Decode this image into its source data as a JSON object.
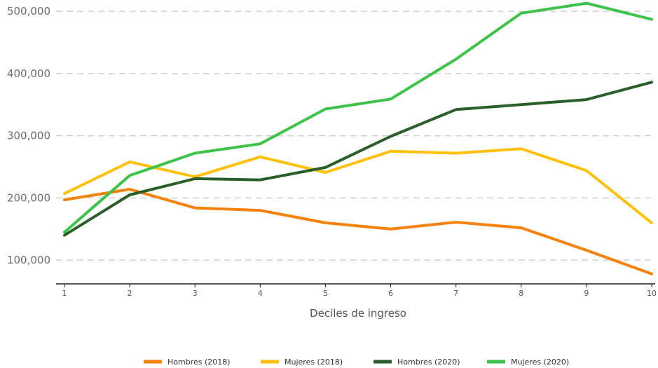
{
  "chart_data": {
    "type": "line",
    "title": "",
    "xlabel": "Deciles de ingreso",
    "ylabel": "",
    "x": [
      1,
      2,
      3,
      4,
      5,
      6,
      7,
      8,
      9,
      10
    ],
    "y_ticks": [
      100000,
      200000,
      300000,
      400000,
      500000
    ],
    "y_tick_labels": [
      "100,000",
      "200,000",
      "300,000",
      "400,000",
      "500,000"
    ],
    "ylim": [
      63000,
      517000
    ],
    "grid": "horizontal-dashed",
    "legend_position": "bottom",
    "series": [
      {
        "name": "Hombres (2018)",
        "color": "#F5820A",
        "values": [
          197000,
          214000,
          184000,
          180000,
          160000,
          150000,
          161000,
          152000,
          116000,
          78000
        ]
      },
      {
        "name": "Mujeres (2018)",
        "color": "#FFC10E",
        "values": [
          207000,
          258000,
          234000,
          266000,
          241000,
          275000,
          272000,
          279000,
          244000,
          160000
        ]
      },
      {
        "name": "Hombres (2020)",
        "color": "#2A5E2B",
        "values": [
          140000,
          205000,
          231000,
          229000,
          249000,
          299000,
          342000,
          350000,
          358000,
          386000
        ]
      },
      {
        "name": "Mujeres (2020)",
        "color": "#3DC24A",
        "values": [
          145000,
          236000,
          272000,
          287000,
          343000,
          359000,
          423000,
          497000,
          513000,
          487000
        ]
      }
    ]
  }
}
